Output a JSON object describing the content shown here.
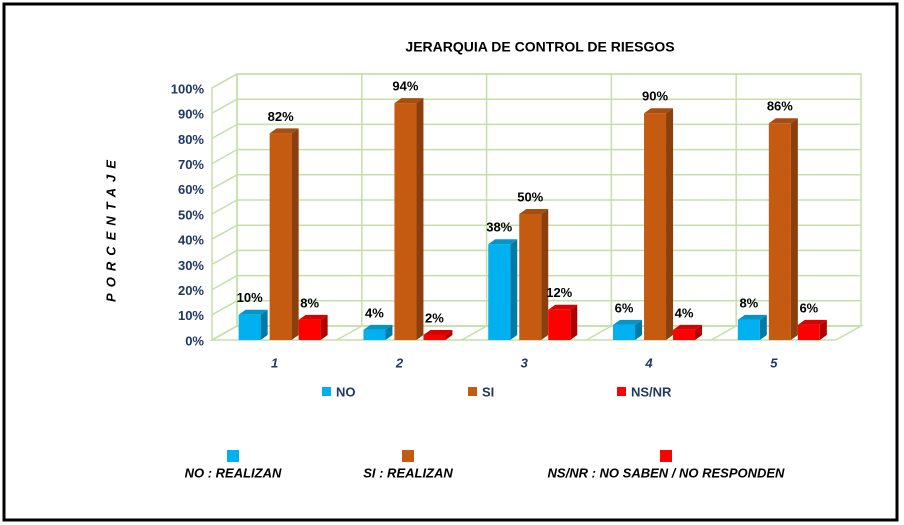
{
  "chart_data": {
    "type": "bar3d",
    "title": "JERARQUIA  DE CONTROL  DE RIESGOS",
    "y_label": "PORCENTAJE",
    "categories": [
      "1",
      "2",
      "3",
      "4",
      "5"
    ],
    "series": [
      {
        "name": "NO",
        "color": "#00b0f0",
        "values": [
          10,
          4,
          38,
          6,
          8
        ],
        "value_labels": [
          "10%",
          "4%",
          "38%",
          "6%",
          "8%"
        ]
      },
      {
        "name": "SI",
        "color": "#c55a11",
        "values": [
          82,
          94,
          50,
          90,
          86
        ],
        "value_labels": [
          "82%",
          "94%",
          "50%",
          "90%",
          "86%"
        ]
      },
      {
        "name": "NS/NR",
        "color": "#ff0000",
        "values": [
          8,
          2,
          12,
          4,
          6
        ],
        "value_labels": [
          "8%",
          "2%",
          "12%",
          "4%",
          "6%"
        ]
      }
    ],
    "ylim": [
      0,
      100
    ],
    "yticks": [
      {
        "value": 0,
        "label": "0%"
      },
      {
        "value": 10,
        "label": "10%"
      },
      {
        "value": 20,
        "label": "20%"
      },
      {
        "value": 30,
        "label": "30%"
      },
      {
        "value": 40,
        "label": "40%"
      },
      {
        "value": 50,
        "label": "50%"
      },
      {
        "value": 60,
        "label": "60%"
      },
      {
        "value": 70,
        "label": "70%"
      },
      {
        "value": 80,
        "label": "80%"
      },
      {
        "value": 90,
        "label": "90%"
      },
      {
        "value": 100,
        "label": "100%"
      }
    ],
    "grid": true,
    "legend_notes": [
      {
        "text": "NO : REALIZAN",
        "color": "#00b0f0"
      },
      {
        "text": "SI : REALIZAN",
        "color": "#c55a11"
      },
      {
        "text": "NS/NR : NO SABEN / NO RESPONDEN",
        "color": "#ff0000"
      }
    ]
  }
}
